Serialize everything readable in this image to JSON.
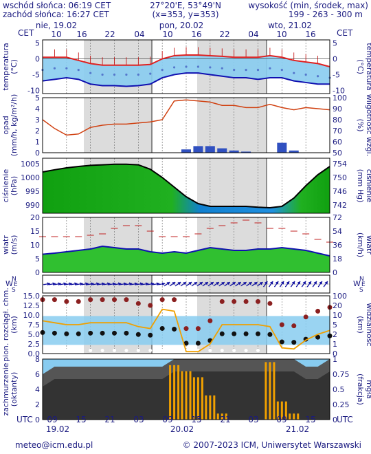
{
  "header": {
    "sunrise": "wschód słońca: 06:19 CET",
    "sunset": "zachód słońca: 16:27 CET",
    "coords": "27°20'E, 53°49'N",
    "grid": "(x=353, y=353)",
    "elevation_label": "wysokość (min, środek, max)",
    "elevation_values": "199 - 263 - 300 m"
  },
  "timezone_label": "CET",
  "utc_label": "UTC",
  "top_days": [
    "nie, 19.02",
    "pon, 20.02",
    "wto, 21.02"
  ],
  "top_hours": [
    "10",
    "16",
    "22",
    "04",
    "10",
    "16",
    "22",
    "04",
    "10",
    "16"
  ],
  "bottom_hours": [
    "09",
    "15",
    "21",
    "03",
    "09",
    "15",
    "21",
    "03",
    "09",
    "15"
  ],
  "bottom_days": [
    "19.02",
    "20.02",
    "21.02"
  ],
  "panels": [
    {
      "id": "temperature",
      "left_label": "temperatura",
      "left_unit": "(°C)",
      "right_label": "temperatura",
      "right_unit": "(°C)",
      "left_ticks": [
        "5",
        "0",
        "-5",
        "-10"
      ],
      "right_ticks": [
        "5",
        "0",
        "-5",
        "-10"
      ]
    },
    {
      "id": "precip",
      "left_label": "opad",
      "left_unit": "(mm/h, kg/m²/h)",
      "right_label": "wilgotność wzgl.",
      "right_unit": "(%)",
      "left_ticks": [
        "5",
        "4",
        "3",
        "2",
        "1",
        "0"
      ],
      "right_ticks": [
        "100",
        "90",
        "80",
        "70",
        "60",
        "50"
      ]
    },
    {
      "id": "pressure",
      "left_label": "ciśnienie",
      "left_unit": "(hPa)",
      "right_label": "ciśnienie",
      "right_unit": "(mm Hg)",
      "left_ticks": [
        "1005",
        "1000",
        "995",
        "990"
      ],
      "right_ticks": [
        "754",
        "750",
        "746",
        "742"
      ]
    },
    {
      "id": "wind",
      "left_label": "wiatr",
      "left_unit": "(m/s)",
      "right_label": "wiatr",
      "right_unit": "(km/h)",
      "left_ticks": [
        "20",
        "15",
        "10",
        "5",
        "0"
      ],
      "right_ticks": [
        "72",
        "54",
        "36",
        "18",
        "0"
      ]
    },
    {
      "id": "winddir",
      "left_label": "",
      "left_unit": "",
      "right_label": "",
      "right_unit": "",
      "left_ticks": [],
      "right_ticks": []
    },
    {
      "id": "visibility",
      "left_label": "pion. rozciągł. chm.",
      "left_unit": "(km)",
      "right_label": "widzialność",
      "right_unit": "(km)",
      "left_ticks": [
        "15.0",
        "12.5",
        "10.0",
        "7.5",
        "5.0",
        "2.5",
        "0.0"
      ],
      "right_ticks": [
        "100",
        "20",
        "10",
        "5",
        "2",
        "1",
        "0"
      ]
    },
    {
      "id": "clouds",
      "left_label": "zachmurzenie",
      "left_unit": "(oktanty)",
      "right_label": "mgła",
      "right_unit": "(frakcja)",
      "left_ticks": [
        "8",
        "6",
        "4",
        "2",
        "0"
      ],
      "right_ticks": [
        "1",
        "0.75",
        "0.5",
        "0.25",
        "0"
      ]
    }
  ],
  "compass": {
    "n": "N",
    "w": "W",
    "s": "S",
    "e": "E"
  },
  "footer": {
    "left": "meteo@icm.edu.pl",
    "right": "© 2007-2023 ICM, Uniwersytet Warszawski"
  },
  "colors": {
    "text": "#1a1a80",
    "temp_max": "#e02020",
    "temp_min": "#1010b0",
    "humidity": "#d04010",
    "pressure_line": "#000000",
    "wind_line": "#1010b0",
    "accent_orange": "#f0a000",
    "sky": "#88ccf0"
  },
  "chart_data": {
    "type": "meteogram",
    "x_unit": "hour offset from 19.02 09:00 UTC",
    "temperature": {
      "ylim": [
        -11,
        6
      ],
      "max": [
        0.5,
        0.5,
        0.5,
        -0.5,
        -1.5,
        -2.0,
        -2.0,
        -2.0,
        -2.0,
        -1.8,
        0.0,
        1.0,
        1.2,
        1.2,
        1.0,
        0.8,
        0.5,
        0.5,
        0.5,
        1.0,
        0.5,
        -0.5,
        -1.0,
        -1.5,
        -2.5
      ],
      "mean": [
        -2.0,
        -1.5,
        -1.5,
        -2.0,
        -3.0,
        -3.5,
        -3.5,
        -3.5,
        -3.5,
        -3.2,
        -2.0,
        -1.2,
        -1.0,
        -1.0,
        -1.2,
        -1.5,
        -2.0,
        -2.0,
        -2.0,
        -1.5,
        -2.0,
        -3.0,
        -3.5,
        -4.0,
        -4.5
      ],
      "min": [
        -7.0,
        -6.5,
        -6.0,
        -6.5,
        -8.0,
        -8.5,
        -8.5,
        -8.7,
        -8.5,
        -8.0,
        -6.0,
        -5.0,
        -4.5,
        -4.5,
        -5.0,
        -5.5,
        -6.0,
        -6.0,
        -6.5,
        -6.0,
        -6.0,
        -7.0,
        -7.5,
        -8.0,
        -8.0
      ]
    },
    "precipitation": {
      "ylim": [
        0,
        5
      ],
      "mm_per_h": [
        0,
        0,
        0,
        0,
        0,
        0,
        0,
        0,
        0,
        0,
        0,
        0,
        0.3,
        0.6,
        0.6,
        0.4,
        0.2,
        0.1,
        0,
        0,
        0.9,
        0.2,
        0,
        0,
        0
      ]
    },
    "relative_humidity": {
      "ylim": [
        50,
        100
      ],
      "values": [
        80,
        72,
        66,
        67,
        73,
        75,
        76,
        76,
        77,
        78,
        80,
        97,
        98,
        97,
        96,
        93,
        93,
        91,
        91,
        94,
        91,
        89,
        91,
        90,
        89
      ]
    },
    "pressure_hpa": {
      "ylim": [
        987,
        1007
      ],
      "values": [
        1002.0,
        1002.8,
        1003.5,
        1004.0,
        1004.4,
        1004.6,
        1004.8,
        1004.8,
        1004.6,
        1003.0,
        1000.0,
        996.5,
        993.0,
        990.5,
        989.5,
        989.5,
        989.5,
        989.5,
        989.2,
        989.0,
        989.5,
        992.5,
        997.0,
        1001.0,
        1004.0
      ]
    },
    "wind_ms": {
      "ylim": [
        0,
        20
      ],
      "speed": [
        6.6,
        7.0,
        7.5,
        8.0,
        8.5,
        9.5,
        9.0,
        8.5,
        8.5,
        7.5,
        7.0,
        7.5,
        7.0,
        8.0,
        9.0,
        8.5,
        8.0,
        8.0,
        8.5,
        8.5,
        9.0,
        8.5,
        8.0,
        7.0,
        6.0
      ],
      "gust": [
        13,
        13,
        13,
        13,
        13.5,
        14,
        16,
        17,
        17,
        15,
        13,
        13,
        13,
        14,
        16,
        17,
        18,
        19,
        18,
        16,
        16,
        15,
        14,
        12,
        11
      ]
    },
    "visibility_km": {
      "ylim": [
        0,
        15
      ],
      "values": [
        8.5,
        8.0,
        7.5,
        7.5,
        8.0,
        8.0,
        8.0,
        8.0,
        7.0,
        6.5,
        11.5,
        11.0,
        0.5,
        0.5,
        2.5,
        7.5,
        7.5,
        7.5,
        7.5,
        7.0,
        1.5,
        1.2,
        3.5,
        5.0,
        6.0
      ]
    },
    "cloud_octas": {
      "ylim": [
        0,
        8
      ],
      "values": [
        6,
        7,
        7,
        7,
        7,
        7,
        7,
        7,
        7,
        7,
        7,
        8,
        8,
        8,
        8,
        8,
        8,
        8,
        8,
        8,
        8,
        8,
        7,
        7,
        8
      ]
    },
    "fog_fraction": {
      "ylim": [
        0,
        1
      ],
      "values": [
        0,
        0,
        0,
        0,
        0,
        0,
        0,
        0,
        0,
        0,
        0,
        0.9,
        0.8,
        0.7,
        0.4,
        0.1,
        0,
        0,
        0,
        0.95,
        0.3,
        0.1,
        0,
        0,
        0
      ]
    }
  }
}
